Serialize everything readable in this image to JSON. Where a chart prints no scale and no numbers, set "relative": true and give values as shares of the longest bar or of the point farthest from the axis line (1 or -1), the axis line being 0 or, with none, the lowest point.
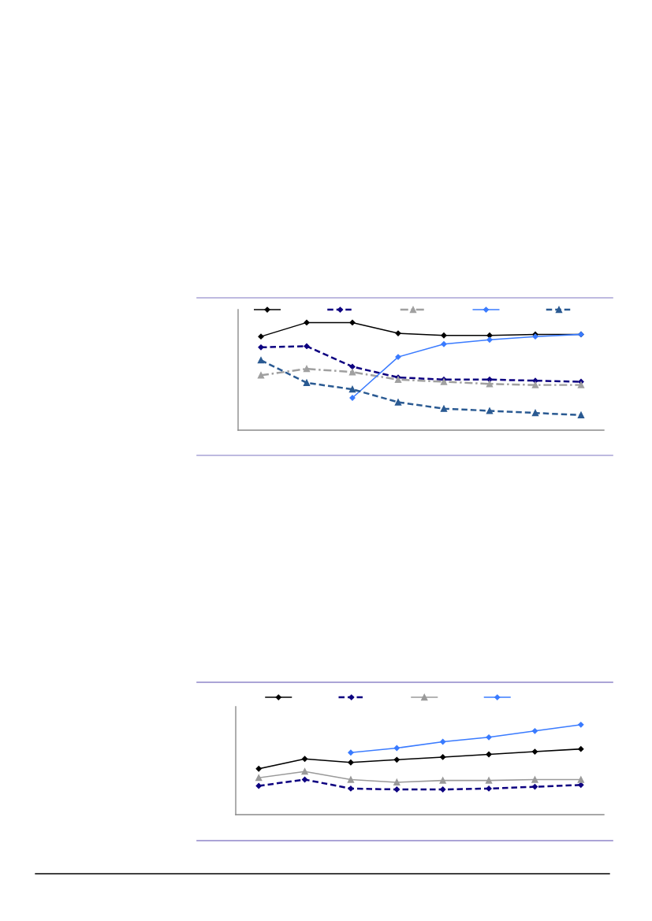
{
  "chart_data": [
    {
      "type": "line",
      "relative": true,
      "categories": [
        null,
        null,
        null,
        null,
        null,
        null,
        null,
        null
      ],
      "series": [
        {
          "color": "#000000",
          "marker": "diamond",
          "line_style": "solid",
          "values": [
            0.87,
            1.0,
            1.0,
            0.9,
            0.88,
            0.88,
            0.89,
            0.89
          ]
        },
        {
          "color": "#0d0080",
          "marker": "diamond",
          "line_style": "dashed",
          "values": [
            0.77,
            0.78,
            0.59,
            0.49,
            0.47,
            0.47,
            0.46,
            0.45
          ]
        },
        {
          "color": "#a0a0a0",
          "marker": "triangle",
          "line_style": "dashdot",
          "values": [
            0.51,
            0.57,
            0.54,
            0.47,
            0.45,
            0.43,
            0.42,
            0.42
          ]
        },
        {
          "color": "#3a7bff",
          "marker": "diamond",
          "line_style": "solid",
          "values": [
            null,
            null,
            0.3,
            0.68,
            0.8,
            0.84,
            0.87,
            0.89
          ]
        },
        {
          "color": "#2a5a92",
          "marker": "triangle",
          "line_style": "dashed",
          "values": [
            0.65,
            0.44,
            0.38,
            0.26,
            0.2,
            0.18,
            0.16,
            0.14
          ]
        }
      ]
    },
    {
      "type": "line",
      "relative": true,
      "categories": [
        null,
        null,
        null,
        null,
        null,
        null,
        null,
        null
      ],
      "series": [
        {
          "color": "#000000",
          "marker": "diamond",
          "line_style": "solid",
          "values": [
            0.51,
            0.62,
            0.58,
            0.61,
            0.64,
            0.67,
            0.7,
            0.73
          ]
        },
        {
          "color": "#0d0080",
          "marker": "diamond",
          "line_style": "dashed",
          "values": [
            0.32,
            0.39,
            0.29,
            0.28,
            0.28,
            0.29,
            0.31,
            0.33
          ]
        },
        {
          "color": "#9a9a9a",
          "marker": "triangle",
          "line_style": "solid",
          "values": [
            0.41,
            0.48,
            0.39,
            0.36,
            0.38,
            0.38,
            0.39,
            0.39
          ]
        },
        {
          "color": "#3a7bff",
          "marker": "diamond",
          "line_style": "solid",
          "values": [
            null,
            null,
            0.69,
            0.74,
            0.81,
            0.86,
            0.93,
            1.0
          ]
        }
      ]
    }
  ]
}
